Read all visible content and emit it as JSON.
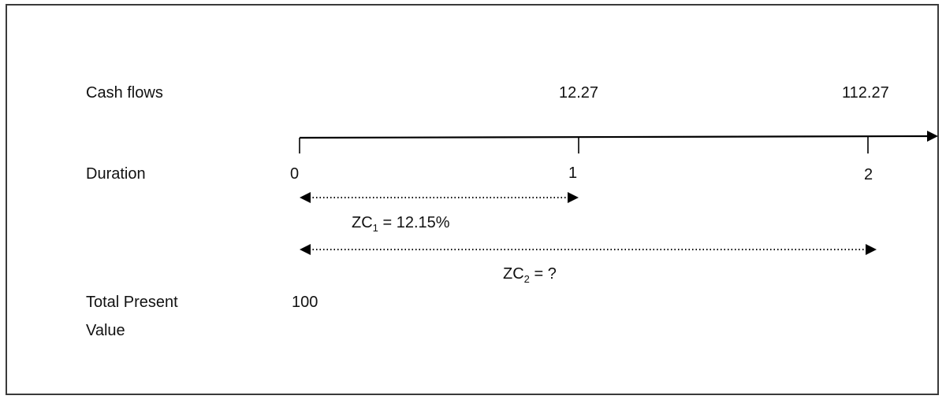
{
  "labels": {
    "cash_flows": "Cash flows",
    "duration": "Duration",
    "total_present_value_line1": "Total Present",
    "total_present_value_line2": "Value"
  },
  "cash_flow_values": [
    "12.27",
    "112.27"
  ],
  "timeline_ticks": [
    "0",
    "1",
    "2"
  ],
  "zero_coupon": {
    "zc1": {
      "prefix": "ZC",
      "sub": "1",
      "suffix": " = 12.15%"
    },
    "zc2": {
      "prefix": "ZC",
      "sub": "2",
      "suffix": " = ?"
    }
  },
  "total_present_value": "100"
}
